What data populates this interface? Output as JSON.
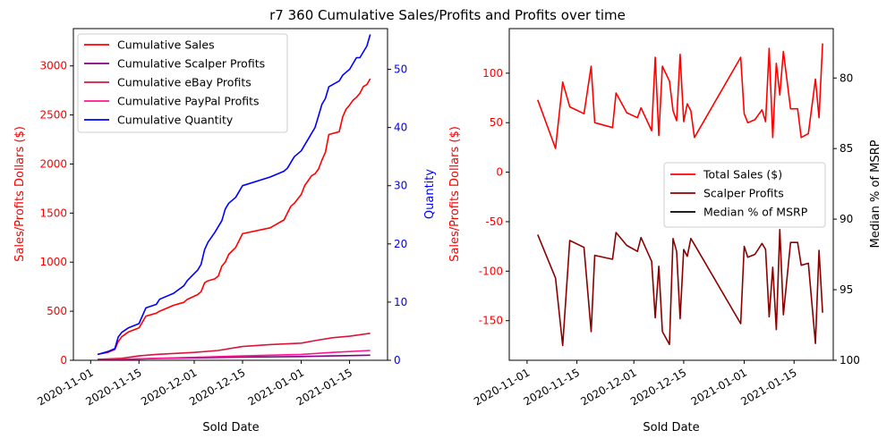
{
  "title": "r7 360 Cumulative Sales/Profits and Profits over time",
  "colors": {
    "sales": "#ff0000",
    "scalper": "#800080",
    "ebay": "#dc143c",
    "paypal": "#ff1493",
    "quantity": "#0000ff",
    "total_sales": "#ff0000",
    "scalper_profits": "#8b0000",
    "median": "#000000"
  },
  "chart_data": [
    {
      "type": "line",
      "xlabel": "Sold Date",
      "ylabel": "Sales/Profits Dollars ($)",
      "y2label": "Quantity",
      "xlim": [
        "2020-10-27",
        "2021-01-26"
      ],
      "ylim": [
        0,
        3380
      ],
      "y2lim": [
        0,
        57
      ],
      "x_ticks": [
        "2020-11-01",
        "2020-11-15",
        "2020-12-01",
        "2020-12-15",
        "2021-01-01",
        "2021-01-15"
      ],
      "y_ticks": [
        0,
        500,
        1000,
        1500,
        2000,
        2500,
        3000
      ],
      "y2_ticks": [
        0,
        10,
        20,
        30,
        40,
        50
      ],
      "legend_position": "top-left",
      "series": [
        {
          "name": "Cumulative Sales",
          "axis": "left",
          "color_key": "sales",
          "x": [
            "2020-11-03",
            "2020-11-06",
            "2020-11-08",
            "2020-11-09",
            "2020-11-10",
            "2020-11-12",
            "2020-11-15",
            "2020-11-17",
            "2020-11-20",
            "2020-11-21",
            "2020-11-25",
            "2020-11-28",
            "2020-11-29",
            "2020-12-02",
            "2020-12-03",
            "2020-12-04",
            "2020-12-05",
            "2020-12-07",
            "2020-12-08",
            "2020-12-09",
            "2020-12-10",
            "2020-12-11",
            "2020-12-13",
            "2020-12-15",
            "2020-12-23",
            "2020-12-27",
            "2020-12-28",
            "2020-12-29",
            "2020-12-30",
            "2021-01-01",
            "2021-01-02",
            "2021-01-03",
            "2021-01-04",
            "2021-01-05",
            "2021-01-06",
            "2021-01-07",
            "2021-01-08",
            "2021-01-09",
            "2021-01-12",
            "2021-01-13",
            "2021-01-14",
            "2021-01-15",
            "2021-01-16",
            "2021-01-17",
            "2021-01-18",
            "2021-01-19",
            "2021-01-20",
            "2021-01-21"
          ],
          "y": [
            60,
            80,
            110,
            190,
            240,
            290,
            330,
            450,
            480,
            500,
            560,
            590,
            620,
            670,
            700,
            790,
            810,
            830,
            860,
            960,
            1000,
            1080,
            1150,
            1290,
            1350,
            1430,
            1500,
            1570,
            1600,
            1690,
            1780,
            1830,
            1880,
            1900,
            1950,
            2040,
            2120,
            2300,
            2330,
            2480,
            2560,
            2600,
            2650,
            2680,
            2720,
            2790,
            2810,
            2870
          ]
        },
        {
          "name": "Cumulative Scalper Profits",
          "axis": "left",
          "color_key": "scalper",
          "x": [
            "2020-11-03",
            "2020-11-10",
            "2020-11-20",
            "2020-12-01",
            "2020-12-15",
            "2021-01-01",
            "2021-01-10",
            "2021-01-21"
          ],
          "y": [
            5,
            10,
            18,
            25,
            32,
            38,
            45,
            52
          ]
        },
        {
          "name": "Cumulative eBay Profits",
          "axis": "left",
          "color_key": "ebay",
          "x": [
            "2020-11-03",
            "2020-11-10",
            "2020-11-15",
            "2020-11-20",
            "2020-12-01",
            "2020-12-08",
            "2020-12-15",
            "2020-12-23",
            "2021-01-01",
            "2021-01-05",
            "2021-01-10",
            "2021-01-15",
            "2021-01-21"
          ],
          "y": [
            10,
            20,
            45,
            60,
            80,
            100,
            140,
            160,
            175,
            200,
            230,
            245,
            275
          ]
        },
        {
          "name": "Cumulative PayPal Profits",
          "axis": "left",
          "color_key": "paypal",
          "x": [
            "2020-11-03",
            "2020-11-10",
            "2020-11-20",
            "2020-12-01",
            "2020-12-15",
            "2021-01-01",
            "2021-01-10",
            "2021-01-21"
          ],
          "y": [
            3,
            10,
            20,
            30,
            45,
            60,
            80,
            100
          ]
        },
        {
          "name": "Cumulative Quantity",
          "axis": "right",
          "color_key": "quantity",
          "x": [
            "2020-11-03",
            "2020-11-06",
            "2020-11-08",
            "2020-11-09",
            "2020-11-10",
            "2020-11-12",
            "2020-11-15",
            "2020-11-17",
            "2020-11-20",
            "2020-11-21",
            "2020-11-25",
            "2020-11-28",
            "2020-11-29",
            "2020-12-02",
            "2020-12-03",
            "2020-12-04",
            "2020-12-05",
            "2020-12-07",
            "2020-12-08",
            "2020-12-09",
            "2020-12-10",
            "2020-12-11",
            "2020-12-13",
            "2020-12-15",
            "2020-12-23",
            "2020-12-27",
            "2020-12-28",
            "2020-12-29",
            "2020-12-30",
            "2021-01-01",
            "2021-01-02",
            "2021-01-03",
            "2021-01-04",
            "2021-01-05",
            "2021-01-06",
            "2021-01-07",
            "2021-01-08",
            "2021-01-09",
            "2021-01-12",
            "2021-01-13",
            "2021-01-14",
            "2021-01-15",
            "2021-01-16",
            "2021-01-17",
            "2021-01-18",
            "2021-01-19",
            "2021-01-20",
            "2021-01-21"
          ],
          "y": [
            1,
            1.5,
            2,
            4,
            4.8,
            5.6,
            6.3,
            9,
            9.6,
            10.5,
            11.5,
            12.8,
            13.7,
            15.5,
            16.5,
            19,
            20.3,
            22,
            23,
            24,
            26,
            27,
            28,
            30,
            31.5,
            32.5,
            33,
            34,
            35,
            36,
            37,
            38,
            39,
            40,
            42,
            44,
            45,
            47,
            48,
            49,
            49.5,
            50,
            51,
            52,
            52,
            53,
            54,
            56
          ]
        }
      ]
    },
    {
      "type": "line",
      "xlabel": "Sold Date",
      "ylabel": "Sales/Profits Dollars ($)",
      "y2label": "Median % of MSRP",
      "xlim": [
        "2020-10-27",
        "2021-01-26"
      ],
      "ylim": [
        -190,
        145
      ],
      "y2lim": [
        100,
        76.5
      ],
      "x_ticks": [
        "2020-11-01",
        "2020-11-15",
        "2020-12-01",
        "2020-12-15",
        "2021-01-01",
        "2021-01-15"
      ],
      "y_ticks": [
        -150,
        -100,
        -50,
        0,
        50,
        100
      ],
      "y2_ticks": [
        80,
        85,
        90,
        95,
        100
      ],
      "legend_position": "center-right",
      "series": [
        {
          "name": "Total Sales ($)",
          "axis": "left",
          "color_key": "total_sales",
          "x": [
            "2020-11-04",
            "2020-11-09",
            "2020-11-11",
            "2020-11-13",
            "2020-11-17",
            "2020-11-19",
            "2020-11-20",
            "2020-11-25",
            "2020-11-26",
            "2020-11-29",
            "2020-12-02",
            "2020-12-03",
            "2020-12-06",
            "2020-12-07",
            "2020-12-08",
            "2020-12-09",
            "2020-12-11",
            "2020-12-12",
            "2020-12-13",
            "2020-12-14",
            "2020-12-15",
            "2020-12-16",
            "2020-12-17",
            "2020-12-18",
            "2020-12-31",
            "2021-01-01",
            "2021-01-02",
            "2021-01-04",
            "2021-01-06",
            "2021-01-07",
            "2021-01-08",
            "2021-01-09",
            "2021-01-10",
            "2021-01-11",
            "2021-01-12",
            "2021-01-14",
            "2021-01-16",
            "2021-01-17",
            "2021-01-19",
            "2021-01-21",
            "2021-01-22",
            "2021-01-23"
          ],
          "y": [
            73,
            24,
            91,
            66,
            59,
            107,
            50,
            45,
            80,
            60,
            55,
            65,
            42,
            116,
            37,
            107,
            92,
            62,
            52,
            119,
            51,
            69,
            62,
            35,
            116,
            59,
            50,
            53,
            63,
            51,
            125,
            35,
            110,
            78,
            122,
            64,
            64,
            35,
            39,
            94,
            55,
            130
          ]
        },
        {
          "name": "Scalper Profits",
          "axis": "left",
          "color_key": "scalper_profits",
          "x": [
            "2020-11-04",
            "2020-11-09",
            "2020-11-11",
            "2020-11-13",
            "2020-11-17",
            "2020-11-19",
            "2020-11-20",
            "2020-11-25",
            "2020-11-26",
            "2020-11-29",
            "2020-12-02",
            "2020-12-03",
            "2020-12-06",
            "2020-12-07",
            "2020-12-08",
            "2020-12-09",
            "2020-12-11",
            "2020-12-12",
            "2020-12-13",
            "2020-12-14",
            "2020-12-15",
            "2020-12-16",
            "2020-12-17",
            "2020-12-18",
            "2020-12-31",
            "2021-01-01",
            "2021-01-02",
            "2021-01-04",
            "2021-01-06",
            "2021-01-07",
            "2021-01-08",
            "2021-01-09",
            "2021-01-10",
            "2021-01-11",
            "2021-01-12",
            "2021-01-14",
            "2021-01-16",
            "2021-01-17",
            "2021-01-19",
            "2021-01-21",
            "2021-01-22",
            "2021-01-23"
          ],
          "y": [
            -63,
            -107,
            -175,
            -69,
            -76,
            -161,
            -84,
            -88,
            -61,
            -74,
            -80,
            -66,
            -90,
            -147,
            -95,
            -161,
            -174,
            -67,
            -80,
            -148,
            -78,
            -85,
            -67,
            -73,
            -153,
            -75,
            -86,
            -83,
            -72,
            -78,
            -146,
            -96,
            -159,
            -58,
            -144,
            -71,
            -71,
            -94,
            -92,
            -173,
            -79,
            -142
          ]
        },
        {
          "name": "Median % of MSRP",
          "axis": "right",
          "color_key": "median",
          "x": [],
          "y": []
        }
      ]
    }
  ]
}
